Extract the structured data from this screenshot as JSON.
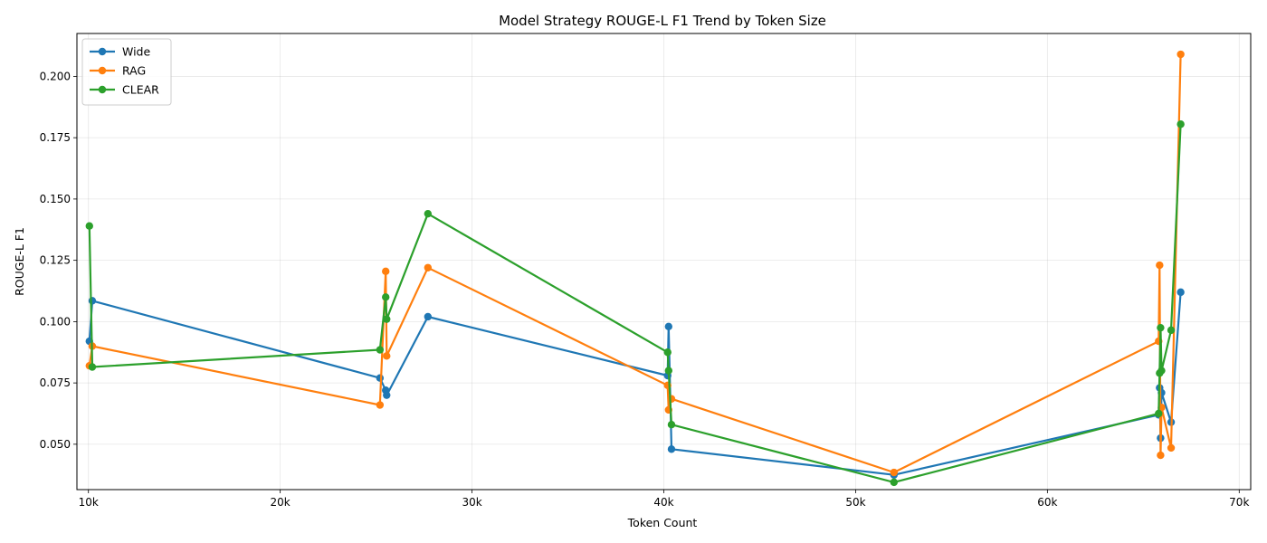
{
  "chart_data": {
    "type": "line",
    "title": "Model Strategy ROUGE-L F1 Trend by Token Size",
    "xlabel": "Token Count",
    "ylabel": "ROUGE-L F1",
    "xlim": [
      9400,
      70600
    ],
    "ylim": [
      0.0315,
      0.2175
    ],
    "x_ticks": [
      10000,
      20000,
      30000,
      40000,
      50000,
      60000,
      70000
    ],
    "x_tick_labels": [
      "10k",
      "20k",
      "30k",
      "40k",
      "50k",
      "60k",
      "70k"
    ],
    "y_ticks": [
      0.05,
      0.075,
      0.1,
      0.125,
      0.15,
      0.175,
      0.2
    ],
    "y_tick_labels": [
      "0.050",
      "0.075",
      "0.100",
      "0.125",
      "0.150",
      "0.175",
      "0.200"
    ],
    "grid": true,
    "legend_position": "top-left",
    "series": [
      {
        "name": "Wide",
        "color": "#1f77b4",
        "x": [
          10050,
          10200,
          25200,
          25500,
          25550,
          27700,
          40200,
          40250,
          40400,
          52000,
          65800,
          65850,
          65900,
          65950,
          66450,
          66950
        ],
        "y": [
          0.092,
          0.1085,
          0.077,
          0.072,
          0.07,
          0.102,
          0.078,
          0.098,
          0.048,
          0.0375,
          0.062,
          0.073,
          0.0525,
          0.071,
          0.059,
          0.112
        ]
      },
      {
        "name": "RAG",
        "color": "#ff7f0e",
        "x": [
          10050,
          10200,
          25200,
          25500,
          25550,
          27700,
          40200,
          40250,
          40400,
          52000,
          65800,
          65850,
          65900,
          65950,
          66450,
          66950
        ],
        "y": [
          0.082,
          0.09,
          0.066,
          0.1205,
          0.086,
          0.122,
          0.074,
          0.064,
          0.0685,
          0.0385,
          0.092,
          0.123,
          0.0455,
          0.065,
          0.0485,
          0.209
        ]
      },
      {
        "name": "CLEAR",
        "color": "#2ca02c",
        "x": [
          10050,
          10200,
          25200,
          25500,
          25550,
          27700,
          40200,
          40250,
          40400,
          52000,
          65800,
          65850,
          65900,
          65950,
          66450,
          66950
        ],
        "y": [
          0.139,
          0.0815,
          0.0885,
          0.11,
          0.101,
          0.144,
          0.0875,
          0.08,
          0.058,
          0.0345,
          0.0625,
          0.079,
          0.0975,
          0.08,
          0.0965,
          0.1805
        ]
      }
    ]
  }
}
